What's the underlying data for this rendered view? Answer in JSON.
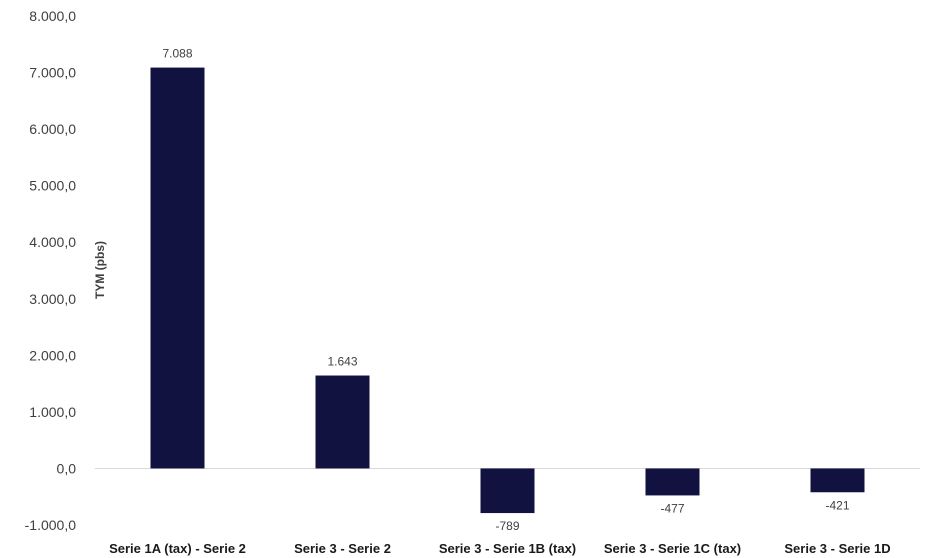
{
  "chart_data": {
    "type": "bar",
    "ylabel": "TYM (pbs)",
    "ylim": [
      -1000,
      8000
    ],
    "yticks": [
      8000,
      7000,
      6000,
      5000,
      4000,
      3000,
      2000,
      1000,
      0,
      -1000
    ],
    "ytick_labels": [
      "8.000,0",
      "7.000,0",
      "6.000,0",
      "5.000,0",
      "4.000,0",
      "3.000,0",
      "2.000,0",
      "1.000,0",
      "0,0",
      "-1.000,0"
    ],
    "categories": [
      "Serie 1A (tax) - Serie 2",
      "Serie 3 - Serie 2",
      "Serie 3 - Serie 1B (tax)",
      "Serie 3 - Serie 1C (tax)",
      "Serie 3 - Serie 1D"
    ],
    "values": [
      7088,
      1643,
      -789,
      -477,
      -421
    ],
    "value_labels": [
      "7.088",
      "1.643",
      "-789",
      "-477",
      "-421"
    ],
    "bar_color": "#11123F",
    "grid": false
  }
}
